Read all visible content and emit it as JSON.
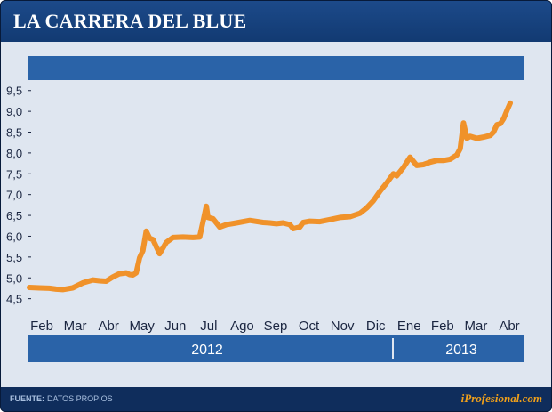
{
  "title": "LA CARRERA DEL BLUE",
  "footer": {
    "source_label": "FUENTE:",
    "source_text": "DATOS PROPIOS",
    "brand": "iProfesional.com"
  },
  "colors": {
    "frame": "#0f2d5c",
    "plot_bg": "#dfe6f0",
    "band": "#2a63a8",
    "line": "#f0922a",
    "brand": "#f0a01a"
  },
  "chart_data": {
    "type": "line",
    "title": "LA CARRERA DEL BLUE",
    "xlabel": "",
    "ylabel": "",
    "ylim": [
      4.3,
      9.9
    ],
    "yticks": [
      "4,5",
      "5,0",
      "5,5",
      "6,0",
      "6,5",
      "7,0",
      "7,5",
      "8,0",
      "8,5",
      "9,0",
      "9,5"
    ],
    "months": [
      "Feb",
      "Mar",
      "Abr",
      "May",
      "Jun",
      "Jul",
      "Ago",
      "Sep",
      "Oct",
      "Nov",
      "Dic",
      "Ene",
      "Feb",
      "Mar",
      "Abr"
    ],
    "years": [
      "2012",
      "2013"
    ],
    "grid": false,
    "series": [
      {
        "x": [
          0,
          0.3,
          0.6,
          0.8,
          1.0,
          1.3,
          1.6,
          1.9,
          2.1,
          2.3,
          2.5,
          2.7,
          2.9,
          3.0,
          3.1,
          3.2,
          3.3,
          3.4,
          3.5,
          3.6,
          3.7,
          3.9,
          4.1,
          4.3,
          4.6,
          4.9,
          5.1,
          5.2,
          5.3,
          5.35,
          5.5,
          5.7,
          5.9,
          6.2,
          6.6,
          7.0,
          7.2,
          7.4,
          7.6,
          7.8,
          7.9,
          8.1,
          8.2,
          8.4,
          8.7,
          9.0,
          9.3,
          9.6,
          9.9,
          10.1,
          10.3,
          10.5,
          10.7,
          10.9,
          11.0,
          11.2,
          11.4,
          11.6,
          11.8,
          12.0,
          12.2,
          12.4,
          12.6,
          12.8,
          12.9,
          13.0,
          13.1,
          13.2,
          13.4,
          13.6,
          13.8,
          13.9,
          14.0,
          14.1,
          14.2,
          14.3,
          14.4
        ],
        "y": [
          4.77,
          4.76,
          4.75,
          4.73,
          4.72,
          4.76,
          4.88,
          4.95,
          4.93,
          4.92,
          5.02,
          5.1,
          5.12,
          5.08,
          5.07,
          5.12,
          5.48,
          5.65,
          6.12,
          5.95,
          5.92,
          5.58,
          5.85,
          5.97,
          5.98,
          5.97,
          5.98,
          6.35,
          6.72,
          6.45,
          6.42,
          6.22,
          6.28,
          6.32,
          6.38,
          6.33,
          6.32,
          6.3,
          6.32,
          6.28,
          6.18,
          6.22,
          6.33,
          6.36,
          6.35,
          6.4,
          6.45,
          6.47,
          6.55,
          6.68,
          6.85,
          7.08,
          7.28,
          7.5,
          7.45,
          7.65,
          7.9,
          7.7,
          7.72,
          7.78,
          7.82,
          7.82,
          7.85,
          7.95,
          8.1,
          8.72,
          8.35,
          8.4,
          8.35,
          8.38,
          8.42,
          8.5,
          8.68,
          8.7,
          8.82,
          9.02,
          9.2
        ]
      }
    ]
  }
}
